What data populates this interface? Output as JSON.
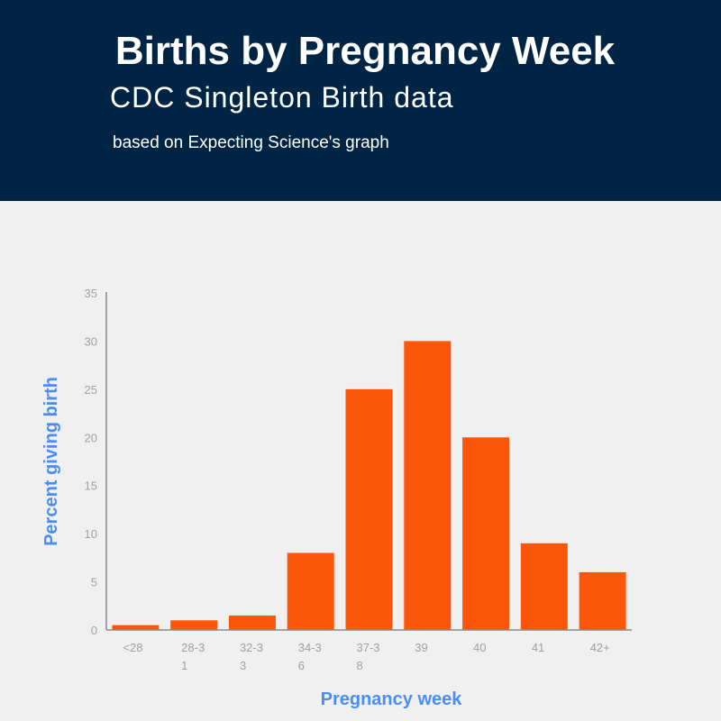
{
  "header": {
    "title": "Births by Pregnancy Week",
    "subtitle": "CDC Singleton Birth data",
    "note": "based on Expecting Science's graph"
  },
  "colors": {
    "header_bg": "#002443",
    "bar": "#fc560a",
    "axis_title": "#4a8ef0"
  },
  "chart_data": {
    "type": "bar",
    "title": "Births by Pregnancy Week",
    "xlabel": "Pregnancy week",
    "ylabel": "Percent giving birth",
    "categories": [
      [
        "<28"
      ],
      [
        "28-3",
        "1"
      ],
      [
        "32-3",
        "3"
      ],
      [
        "34-3",
        "6"
      ],
      [
        "37-3",
        "8"
      ],
      [
        "39"
      ],
      [
        "40"
      ],
      [
        "41"
      ],
      [
        "42+"
      ]
    ],
    "values": [
      0.5,
      1,
      1.5,
      8,
      25,
      30,
      20,
      9,
      6
    ],
    "ylim": [
      0,
      35
    ],
    "yticks": [
      0,
      5,
      10,
      15,
      20,
      25,
      30,
      35
    ],
    "grid": false,
    "legend": "none"
  }
}
